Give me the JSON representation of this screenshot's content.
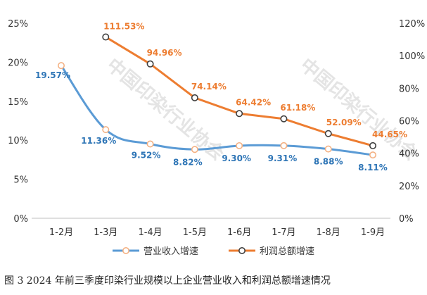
{
  "caption": "图 3 2024 年前三季度印染行业规模以上企业营业收入和利润总额增速情况",
  "watermark": "中国印染行业协会",
  "colors": {
    "revenue": "#5b9bd5",
    "revenue_label": "#2e75b6",
    "profit": "#ed7d31",
    "profit_label": "#ed7d31",
    "axis": "#bfbfbf"
  },
  "chart_data": {
    "type": "line",
    "title": "",
    "categories": [
      "1-2月",
      "1-3月",
      "1-4月",
      "1-5月",
      "1-6月",
      "1-7月",
      "1-8月",
      "1-9月"
    ],
    "y_left": {
      "min": 0,
      "max": 25,
      "step": 5,
      "ticks": [
        "0%",
        "5%",
        "10%",
        "15%",
        "20%",
        "25%"
      ]
    },
    "y_right": {
      "min": 0,
      "max": 120,
      "step": 20,
      "ticks": [
        "0%",
        "20%",
        "40%",
        "60%",
        "80%",
        "100%",
        "120%"
      ]
    },
    "series": [
      {
        "name": "营业收入增速",
        "axis": "left",
        "values": [
          19.57,
          11.36,
          9.52,
          8.82,
          9.3,
          9.31,
          8.88,
          8.11
        ],
        "labels": [
          "19.57%",
          "11.36%",
          "9.52%",
          "8.82%",
          "9.30%",
          "9.31%",
          "8.88%",
          "8.11%"
        ]
      },
      {
        "name": "利润总额增速",
        "axis": "right",
        "values": [
          null,
          111.53,
          94.96,
          74.14,
          64.42,
          61.18,
          52.09,
          44.65
        ],
        "labels": [
          "",
          "111.53%",
          "94.96%",
          "74.14%",
          "64.42%",
          "61.18%",
          "52.09%",
          "44.65%"
        ]
      }
    ],
    "grid": false,
    "legend": "bottom"
  }
}
